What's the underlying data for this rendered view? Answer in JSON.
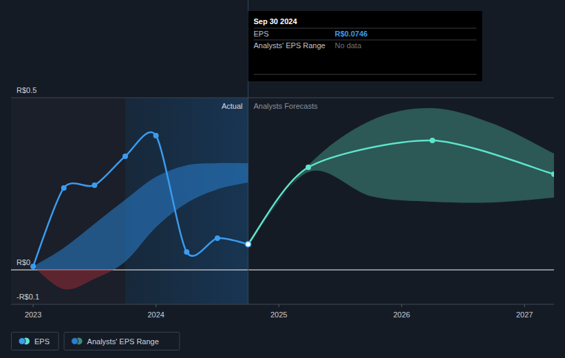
{
  "chart_data": {
    "type": "line",
    "xlim": [
      2022.82,
      2027.24
    ],
    "xticks": [
      2023,
      2024,
      2025,
      2026,
      2027
    ],
    "ylim": [
      -0.1,
      0.5
    ],
    "yticks": [
      {
        "value": 0.5,
        "label": "R$0.5"
      },
      {
        "value": 0,
        "label": "R$0"
      },
      {
        "value": -0.1,
        "label": "-R$0.1"
      }
    ],
    "grid": true,
    "legend": "bottom-left",
    "annotations": [
      "Actual",
      "Analysts Forecasts"
    ],
    "series": [
      {
        "name": "EPS",
        "color": "#3a9cf0",
        "marker": "circle",
        "x": [
          2023.0,
          2023.25,
          2023.5,
          2023.75,
          2024.0,
          2024.25,
          2024.5,
          2024.75
        ],
        "values": [
          0.01,
          0.238,
          0.246,
          0.33,
          0.39,
          0.052,
          0.092,
          0.0746
        ],
        "forecast": {
          "color": "#5fe3cc",
          "x": [
            2024.75,
            2025.24,
            2026.25,
            2027.24
          ],
          "values": [
            0.0746,
            0.298,
            0.376,
            0.278
          ]
        }
      },
      {
        "name": "Analysts' EPS Range",
        "type": "range",
        "color": "#2a7fcf",
        "x": [
          2023.0,
          2023.25,
          2023.5,
          2023.75,
          2024.0,
          2024.25,
          2024.5,
          2024.75
        ],
        "low": [
          0.01,
          -0.056,
          -0.026,
          0.024,
          0.124,
          0.194,
          0.234,
          0.254
        ],
        "high": [
          0.01,
          0.064,
          0.134,
          0.204,
          0.27,
          0.304,
          0.31,
          0.31
        ],
        "forecast": {
          "color": "#3f8a80",
          "x": [
            2024.75,
            2025.24,
            2025.75,
            2026.25,
            2026.75,
            2027.24
          ],
          "low": [
            0.0746,
            0.284,
            0.214,
            0.198,
            0.196,
            0.21
          ],
          "high": [
            0.0746,
            0.304,
            0.434,
            0.47,
            0.424,
            0.338
          ]
        }
      }
    ],
    "tooltip": {
      "date": "Sep 30 2024",
      "x": 2024.75,
      "rows": [
        {
          "label": "EPS",
          "value": 0.0746,
          "value_label": "R$0.0746"
        },
        {
          "label": "Analysts' EPS Range",
          "value_label": "No data"
        }
      ]
    }
  }
}
